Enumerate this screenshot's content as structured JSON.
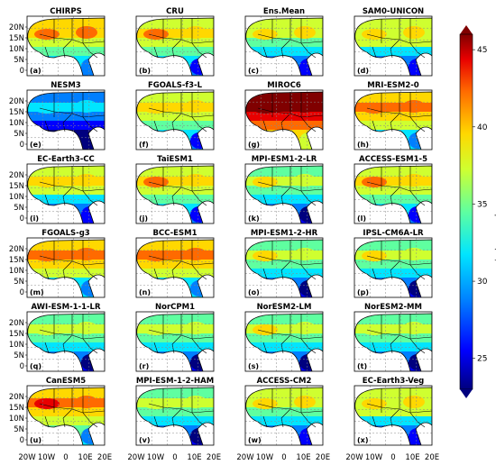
{
  "figure": {
    "colorbar": {
      "title": "Maximum Temperature (°C)",
      "ticks": [
        25,
        30,
        35,
        40,
        45
      ],
      "range": [
        23,
        46
      ],
      "colors": [
        "#00007f",
        "#0000ff",
        "#007fff",
        "#00e5ff",
        "#5fffa0",
        "#cfff30",
        "#ffd800",
        "#ff6a00",
        "#e80000",
        "#800000"
      ]
    },
    "axes": {
      "x_ticks": [
        "20W",
        "10W",
        "0",
        "10E",
        "20E"
      ],
      "y_ticks": [
        "20N",
        "15N",
        "10N",
        "5N",
        "0"
      ]
    },
    "panels": [
      {
        "title": "CHIRPS",
        "label": "(a)",
        "level": 0.55
      },
      {
        "title": "CRU",
        "label": "(b)",
        "level": 0.52
      },
      {
        "title": "Ens.Mean",
        "label": "(c)",
        "level": 0.45
      },
      {
        "title": "SAM0-UNICON",
        "label": "(d)",
        "level": 0.47
      },
      {
        "title": "NESM3",
        "label": "(e)",
        "level": 0.2
      },
      {
        "title": "FGOALS-f3-L",
        "label": "(f)",
        "level": 0.5
      },
      {
        "title": "MIROC6",
        "label": "(g)",
        "level": 0.85
      },
      {
        "title": "MRI-ESM2-0",
        "label": "(h)",
        "level": 0.6
      },
      {
        "title": "EC-Earth3-CC",
        "label": "(i)",
        "level": 0.48
      },
      {
        "title": "TaiESM1",
        "label": "(j)",
        "level": 0.52
      },
      {
        "title": "MPI-ESM1-2-LR",
        "label": "(k)",
        "level": 0.42
      },
      {
        "title": "ACCESS-ESM1-5",
        "label": "(l)",
        "level": 0.52
      },
      {
        "title": "FGOALS-g3",
        "label": "(m)",
        "level": 0.6
      },
      {
        "title": "BCC-ESM1",
        "label": "(n)",
        "level": 0.6
      },
      {
        "title": "MPI-ESM1-2-HR",
        "label": "(o)",
        "level": 0.42
      },
      {
        "title": "IPSL-CM6A-LR",
        "label": "(p)",
        "level": 0.42
      },
      {
        "title": "AWI-ESM-1-1-LR",
        "label": "(q)",
        "level": 0.4
      },
      {
        "title": "NorCPM1",
        "label": "(r)",
        "level": 0.4
      },
      {
        "title": "NorESM2-LM",
        "label": "(s)",
        "level": 0.42
      },
      {
        "title": "NorESM2-MM",
        "label": "(t)",
        "level": 0.4
      },
      {
        "title": "CanESM5",
        "label": "(u)",
        "level": 0.62
      },
      {
        "title": "MPI-ESM-1-2-HAM",
        "label": "(v)",
        "level": 0.4
      },
      {
        "title": "ACCESS-CM2",
        "label": "(w)",
        "level": 0.45
      },
      {
        "title": "EC-Earth3-Veg",
        "label": "(x)",
        "level": 0.47
      }
    ]
  }
}
